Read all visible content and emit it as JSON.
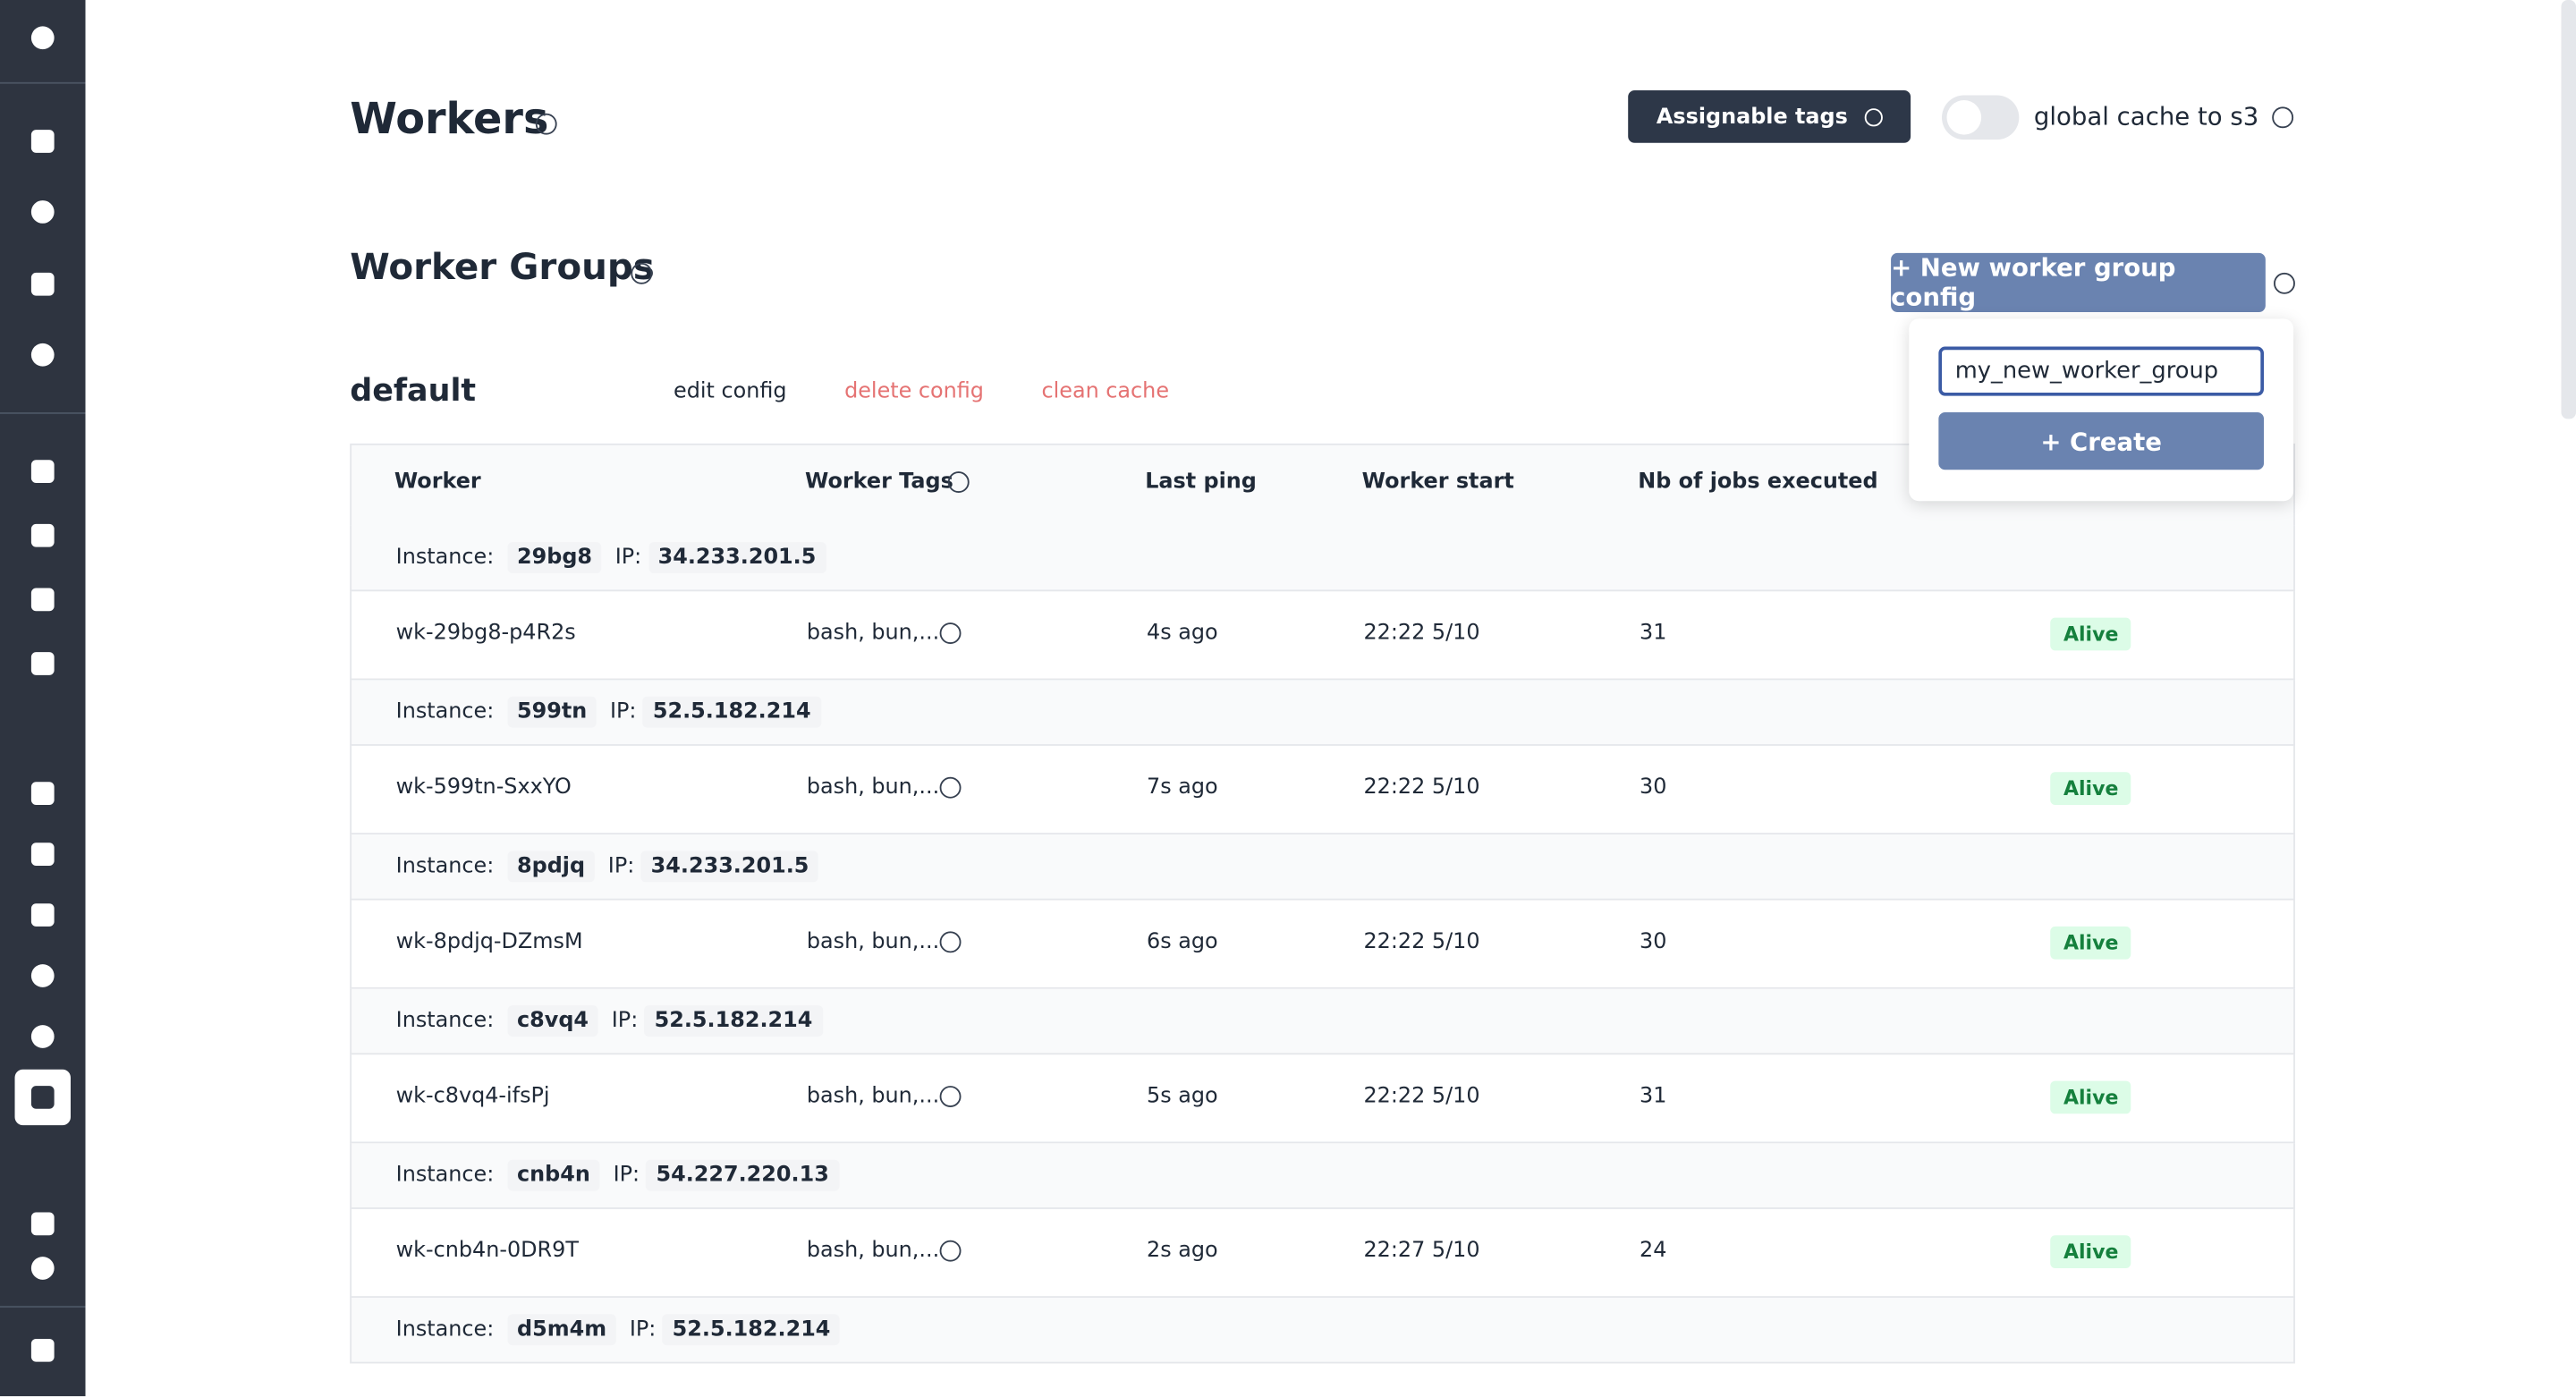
{
  "header": {
    "title": "Workers",
    "assignable_tags": "Assignable tags",
    "cache_toggle": "global cache to s3"
  },
  "worker_groups": {
    "title": "Worker Groups",
    "new_button": "+ New worker group config",
    "popover": {
      "input": "my_new_worker_group",
      "create": "+ Create"
    }
  },
  "group": {
    "name": "default",
    "actions": [
      "edit config",
      "delete config",
      "clean cache"
    ],
    "columns": [
      "Worker",
      "Worker Tags",
      "Last ping",
      "Worker start",
      "Nb of jobs executed"
    ],
    "instances": [
      {
        "label": "Instance:",
        "name": "29bg8",
        "ip_label": "IP:",
        "ip": "34.233.201.5",
        "workers": [
          {
            "name": "wk-29bg8-p4R2s",
            "tags": "bash, bun,...",
            "last_ping": "4s ago",
            "start": "22:22 5/10",
            "jobs": 31,
            "status": "Alive"
          }
        ]
      },
      {
        "label": "Instance:",
        "name": "599tn",
        "ip_label": "IP:",
        "ip": "52.5.182.214",
        "workers": [
          {
            "name": "wk-599tn-SxxYO",
            "tags": "bash, bun,...",
            "last_ping": "7s ago",
            "start": "22:22 5/10",
            "jobs": 30,
            "status": "Alive"
          }
        ]
      },
      {
        "label": "Instance:",
        "name": "8pdjq",
        "ip_label": "IP:",
        "ip": "34.233.201.5",
        "workers": [
          {
            "name": "wk-8pdjq-DZmsM",
            "tags": "bash, bun,...",
            "last_ping": "6s ago",
            "start": "22:22 5/10",
            "jobs": 30,
            "status": "Alive"
          }
        ]
      },
      {
        "label": "Instance:",
        "name": "c8vq4",
        "ip_label": "IP:",
        "ip": "52.5.182.214",
        "workers": [
          {
            "name": "wk-c8vq4-ifsPj",
            "tags": "bash, bun,...",
            "last_ping": "5s ago",
            "start": "22:22 5/10",
            "jobs": 31,
            "status": "Alive"
          }
        ]
      },
      {
        "label": "Instance:",
        "name": "cnb4n",
        "ip_label": "IP:",
        "ip": "54.227.220.13",
        "workers": [
          {
            "name": "wk-cnb4n-0DR9T",
            "tags": "bash, bun,...",
            "last_ping": "2s ago",
            "start": "22:27 5/10",
            "jobs": 24,
            "status": "Alive"
          }
        ]
      },
      {
        "label": "Instance:",
        "name": "d5m4m",
        "ip_label": "IP:",
        "ip": "52.5.182.214",
        "workers": []
      }
    ]
  }
}
